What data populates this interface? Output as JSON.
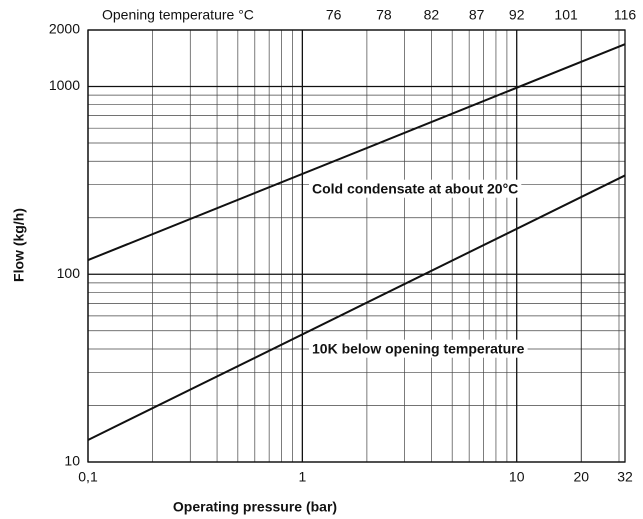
{
  "chart_data": {
    "type": "line",
    "x_label": "Operating pressure (bar)",
    "y_label": "Flow (kg/h)",
    "x2_label": "Opening temperature °C",
    "x": [
      0.1,
      32
    ],
    "series": [
      {
        "name": "Cold condensate at about 20°C",
        "color": "#111111",
        "values": [
          119,
          1680
        ]
      },
      {
        "name": "10K below opening temperature",
        "color": "#111111",
        "values": [
          13.1,
          336
        ]
      }
    ],
    "xscale": "log",
    "yscale": "log",
    "xlim": [
      0.1,
      32
    ],
    "ylim": [
      10,
      2000
    ],
    "xticks": [
      {
        "value": 0.1,
        "label": "0,1"
      },
      1,
      10,
      20,
      32
    ],
    "yticks": [
      10,
      100,
      1000,
      2000
    ],
    "xminor": [
      0.2,
      0.3,
      0.4,
      0.5,
      0.6,
      0.7,
      0.8,
      0.9,
      2,
      3,
      4,
      5,
      6,
      7,
      8,
      9,
      20,
      30
    ],
    "yminor": [
      20,
      30,
      40,
      50,
      60,
      70,
      80,
      90,
      200,
      300,
      400,
      500,
      600,
      700,
      800,
      900
    ],
    "x2_labels": [
      76,
      78,
      82,
      87,
      92,
      101,
      116
    ],
    "x2_at": [
      1.4,
      2.4,
      4,
      6.5,
      10,
      17,
      32
    ],
    "grid": true
  }
}
